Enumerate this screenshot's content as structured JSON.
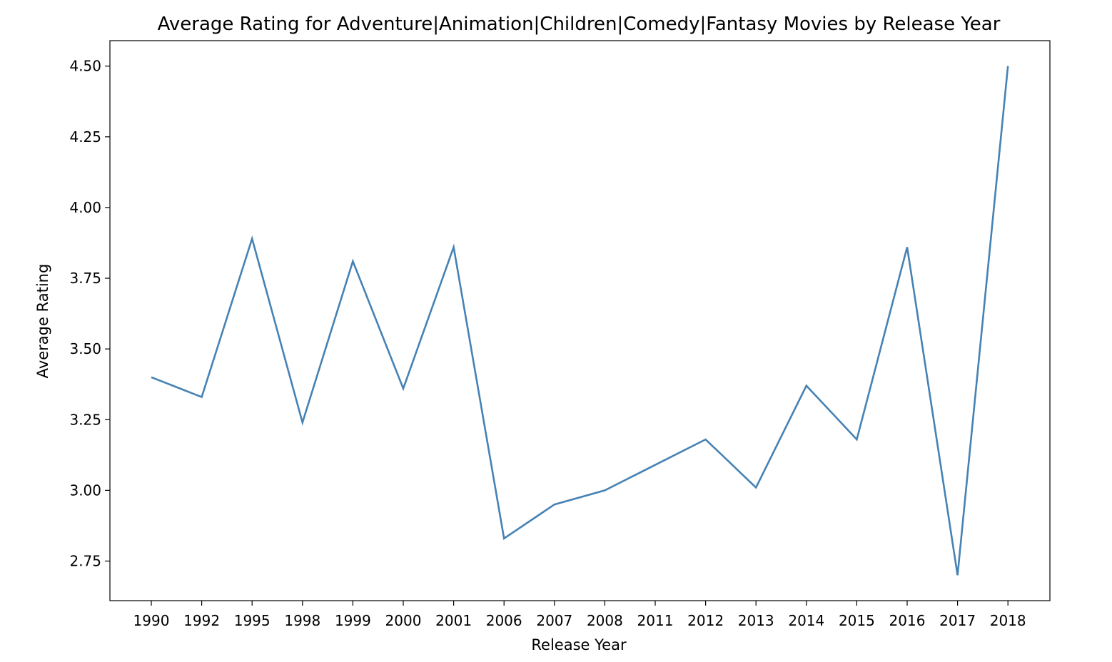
{
  "chart_data": {
    "type": "line",
    "title": "Average Rating for Adventure|Animation|Children|Comedy|Fantasy Movies by Release Year",
    "xlabel": "Release Year",
    "ylabel": "Average Rating",
    "x_scale": "categorical",
    "categories": [
      "1990",
      "1992",
      "1995",
      "1998",
      "1999",
      "2000",
      "2001",
      "2006",
      "2007",
      "2008",
      "2011",
      "2012",
      "2013",
      "2014",
      "2015",
      "2016",
      "2017",
      "2018"
    ],
    "series": [
      {
        "values": [
          3.4,
          3.33,
          3.89,
          3.24,
          3.81,
          3.36,
          3.86,
          2.83,
          2.95,
          3.0,
          3.09,
          3.18,
          3.01,
          3.37,
          3.18,
          3.86,
          2.7,
          4.5
        ]
      }
    ],
    "ylim": [
      2.61,
      4.59
    ],
    "yticks": [
      2.75,
      3.0,
      3.25,
      3.5,
      3.75,
      4.0,
      4.25,
      4.5
    ],
    "ytick_labels": [
      "2.75",
      "3.00",
      "3.25",
      "3.50",
      "3.75",
      "4.00",
      "4.25",
      "4.50"
    ],
    "grid": false,
    "legend": "none",
    "colors": {
      "line": "#4682b4",
      "axes": "#000000",
      "background": "#ffffff"
    }
  }
}
